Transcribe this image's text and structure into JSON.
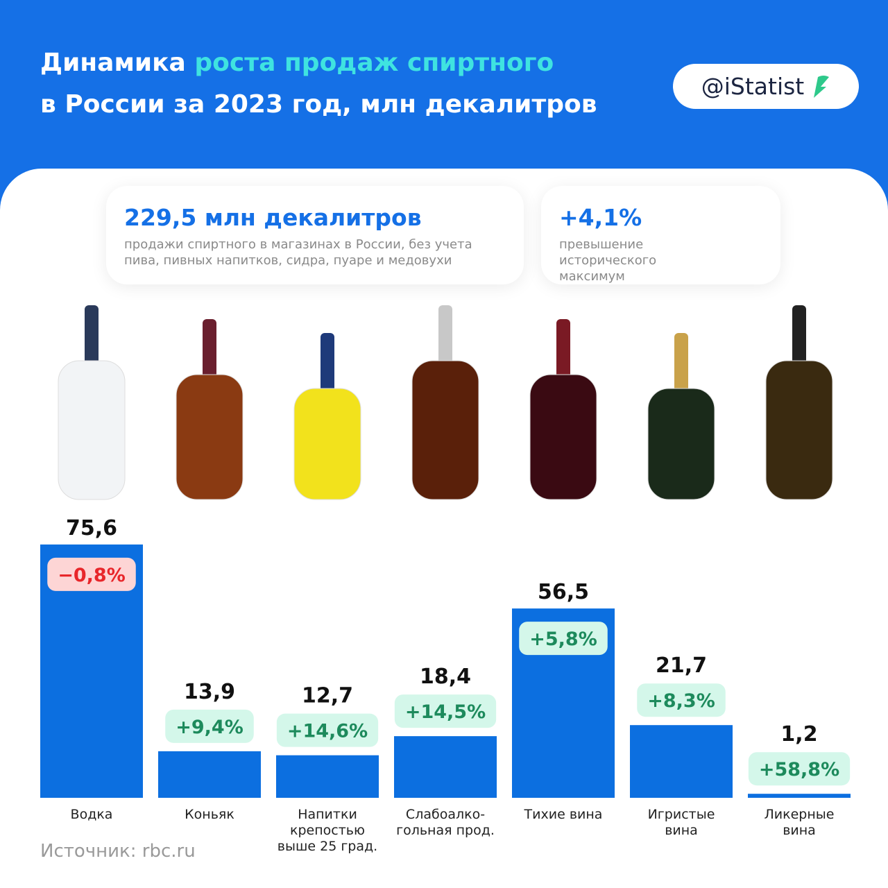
{
  "header": {
    "title_start": "Динамика",
    "title_highlight": "роста продаж спиртного",
    "title_line2": "в России за 2023 год, млн декалитров",
    "brand": "@iStatist"
  },
  "cards": [
    {
      "value": "229,5 млн декалитров",
      "description": "продажи спиртного в магазинах в России, без учета пива, пивных напитков, сидра, пуаре и медовухи"
    },
    {
      "value": "+4,1%",
      "description": "превышение исторического максимум"
    }
  ],
  "chart_data": {
    "type": "bar",
    "categories": [
      "Водка",
      "Коньяк",
      "Напитки\nкрепостью\nвыше 25 град.",
      "Слабоалко-\nгольная прод.",
      "Тихие вина",
      "Игристые\nвина",
      "Ликерные\nвина"
    ],
    "values": [
      75.6,
      13.9,
      12.7,
      18.4,
      56.5,
      21.7,
      1.2
    ],
    "value_labels": [
      "75,6",
      "13,9",
      "12,7",
      "18,4",
      "56,5",
      "21,7",
      "1,2"
    ],
    "changes": [
      -0.8,
      9.4,
      14.6,
      14.5,
      5.8,
      8.3,
      58.8
    ],
    "change_labels": [
      "−0,8%",
      "+9,4%",
      "+14,6%",
      "+14,5%",
      "+5,8%",
      "+8,3%",
      "+58,8%"
    ],
    "color": "#0c6fe0"
  },
  "source": "Источник: rbc.ru"
}
